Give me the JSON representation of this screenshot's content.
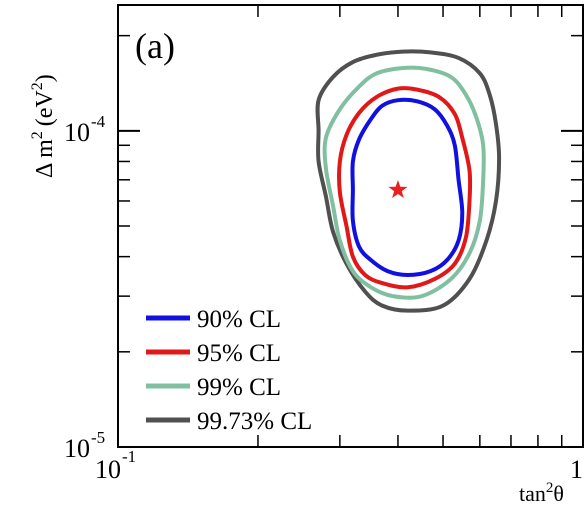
{
  "chart_data": {
    "type": "line",
    "panel_label": "(a)",
    "xlabel": {
      "base": "tan",
      "sup": "2",
      "rest": "θ"
    },
    "ylabel": {
      "pre": "Δ m",
      "sup1": "2",
      "unit_open": "(eV",
      "sup2": "2",
      "unit_close": ")"
    },
    "x_scale": "log",
    "y_scale": "log",
    "xlim": [
      0.1,
      1.0
    ],
    "ylim": [
      1e-05,
      0.00025
    ],
    "x_ticks": [
      {
        "value": 0.1,
        "base": "10",
        "exp": "-1"
      },
      {
        "value": 1.0,
        "base": "1",
        "exp": ""
      }
    ],
    "y_ticks": [
      {
        "value": 1e-05,
        "base": "10",
        "exp": "-5"
      },
      {
        "value": 0.0001,
        "base": "10",
        "exp": "-4"
      }
    ],
    "best_fit": {
      "x": 0.4,
      "y": 6.5e-05,
      "marker": "star",
      "color": "#e82020"
    },
    "legend_position": "bottom-left",
    "series": [
      {
        "name": "90% CL",
        "color": "#1010e0",
        "points": [
          [
            0.4,
            0.000125
          ],
          [
            0.44,
            0.000124
          ],
          [
            0.48,
            0.000117
          ],
          [
            0.51,
            0.000104
          ],
          [
            0.53,
            9e-05
          ],
          [
            0.54,
            7e-05
          ],
          [
            0.55,
            5.5e-05
          ],
          [
            0.54,
            4.5e-05
          ],
          [
            0.51,
            3.9e-05
          ],
          [
            0.47,
            3.6e-05
          ],
          [
            0.42,
            3.5e-05
          ],
          [
            0.38,
            3.6e-05
          ],
          [
            0.35,
            3.9e-05
          ],
          [
            0.33,
            4.3e-05
          ],
          [
            0.32,
            5.2e-05
          ],
          [
            0.32,
            6.5e-05
          ],
          [
            0.32,
            8e-05
          ],
          [
            0.33,
            9.4e-05
          ],
          [
            0.35,
            0.000109
          ],
          [
            0.37,
            0.00012
          ]
        ]
      },
      {
        "name": "95% CL",
        "color": "#e01818",
        "points": [
          [
            0.4,
            0.000136
          ],
          [
            0.44,
            0.000135
          ],
          [
            0.49,
            0.000128
          ],
          [
            0.53,
            0.000113
          ],
          [
            0.55,
            9.5e-05
          ],
          [
            0.57,
            7.5e-05
          ],
          [
            0.57,
            6e-05
          ],
          [
            0.56,
            4.6e-05
          ],
          [
            0.53,
            3.8e-05
          ],
          [
            0.48,
            3.4e-05
          ],
          [
            0.42,
            3.2e-05
          ],
          [
            0.37,
            3.3e-05
          ],
          [
            0.34,
            3.5e-05
          ],
          [
            0.32,
            4e-05
          ],
          [
            0.31,
            5e-05
          ],
          [
            0.3,
            6.4e-05
          ],
          [
            0.3,
            8e-05
          ],
          [
            0.31,
            9.7e-05
          ],
          [
            0.33,
            0.000114
          ],
          [
            0.36,
            0.000128
          ]
        ]
      },
      {
        "name": "99% CL",
        "color": "#80c0a0",
        "points": [
          [
            0.41,
            0.000158
          ],
          [
            0.46,
            0.000157
          ],
          [
            0.52,
            0.000148
          ],
          [
            0.56,
            0.00013
          ],
          [
            0.59,
            0.00011
          ],
          [
            0.61,
            9e-05
          ],
          [
            0.61,
            7e-05
          ],
          [
            0.6,
            5.2e-05
          ],
          [
            0.57,
            4.1e-05
          ],
          [
            0.52,
            3.4e-05
          ],
          [
            0.45,
            3e-05
          ],
          [
            0.39,
            3e-05
          ],
          [
            0.35,
            3.2e-05
          ],
          [
            0.32,
            3.6e-05
          ],
          [
            0.3,
            4.5e-05
          ],
          [
            0.29,
            5.8e-05
          ],
          [
            0.28,
            7.6e-05
          ],
          [
            0.28,
            9.5e-05
          ],
          [
            0.3,
            0.000117
          ],
          [
            0.33,
            0.000138
          ],
          [
            0.36,
            0.000152
          ]
        ]
      },
      {
        "name": "99.73% CL",
        "color": "#505050",
        "points": [
          [
            0.41,
            0.000178
          ],
          [
            0.47,
            0.000177
          ],
          [
            0.54,
            0.00017
          ],
          [
            0.6,
            0.000152
          ],
          [
            0.63,
            0.00013
          ],
          [
            0.65,
            0.000105
          ],
          [
            0.66,
            8.2e-05
          ],
          [
            0.65,
            6e-05
          ],
          [
            0.62,
            4.5e-05
          ],
          [
            0.57,
            3.4e-05
          ],
          [
            0.5,
            2.8e-05
          ],
          [
            0.42,
            2.7e-05
          ],
          [
            0.37,
            2.8e-05
          ],
          [
            0.34,
            3.1e-05
          ],
          [
            0.31,
            3.8e-05
          ],
          [
            0.29,
            4.8e-05
          ],
          [
            0.28,
            6.2e-05
          ],
          [
            0.27,
            8e-05
          ],
          [
            0.27,
            0.0001
          ],
          [
            0.27,
            0.000125
          ],
          [
            0.29,
            0.000148
          ],
          [
            0.32,
            0.000165
          ],
          [
            0.36,
            0.000174
          ]
        ]
      }
    ]
  }
}
